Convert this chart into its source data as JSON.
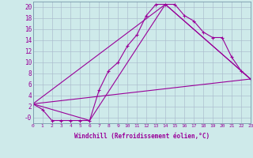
{
  "xlabel": "Windchill (Refroidissement éolien,°C)",
  "bg_color": "#ceeaea",
  "line_color": "#990099",
  "grid_color": "#aabbcc",
  "xlim": [
    0,
    23
  ],
  "ylim": [
    -1.0,
    21.0
  ],
  "xticks": [
    0,
    1,
    2,
    3,
    4,
    5,
    6,
    7,
    8,
    9,
    10,
    11,
    12,
    13,
    14,
    15,
    16,
    17,
    18,
    19,
    20,
    21,
    22,
    23
  ],
  "yticks": [
    0,
    2,
    4,
    6,
    8,
    10,
    12,
    14,
    16,
    18,
    20
  ],
  "ytick_labels": [
    "-0",
    "2",
    "4",
    "6",
    "8",
    "10",
    "12",
    "14",
    "16",
    "18",
    "20"
  ],
  "series1_x": [
    0,
    1,
    2,
    3,
    4,
    5,
    6,
    7,
    8,
    9,
    10,
    11,
    12,
    13,
    14,
    15,
    16,
    17,
    18,
    19,
    20,
    21,
    22,
    23
  ],
  "series1_y": [
    2.5,
    1.5,
    -0.5,
    -0.5,
    -0.5,
    -0.5,
    -0.5,
    5.0,
    8.5,
    10.0,
    13.0,
    15.0,
    18.5,
    20.5,
    20.5,
    20.5,
    18.5,
    17.5,
    15.5,
    14.5,
    14.5,
    11.0,
    8.5,
    7.0
  ],
  "series2_x": [
    0,
    6,
    14,
    23
  ],
  "series2_y": [
    2.5,
    -0.5,
    20.5,
    7.0
  ],
  "series3_x": [
    0,
    23
  ],
  "series3_y": [
    2.5,
    7.0
  ],
  "series4_x": [
    0,
    14,
    23
  ],
  "series4_y": [
    2.5,
    20.5,
    7.0
  ],
  "xlabel_fontsize": 5.5,
  "tick_fontsize_x": 4.5,
  "tick_fontsize_y": 5.5
}
